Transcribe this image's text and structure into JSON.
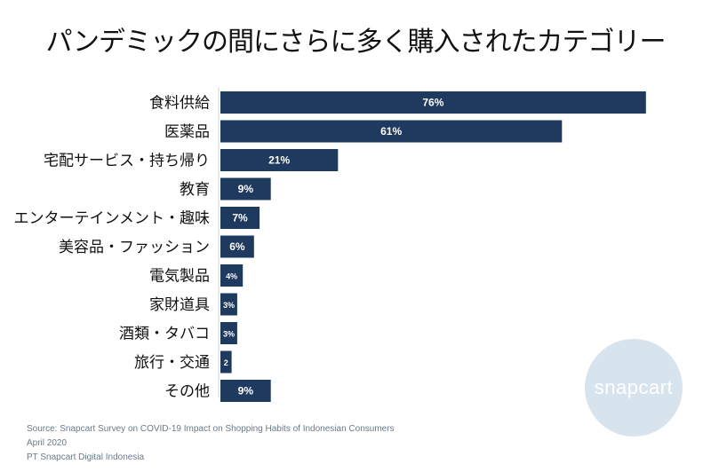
{
  "title": "パンデミックの間にさらに多く購入されたカテゴリー",
  "chart_data": {
    "type": "bar",
    "orientation": "horizontal",
    "categories": [
      "食料供給",
      "医薬品",
      "宅配サービス・持ち帰り",
      "教育",
      "エンターテインメント・趣味",
      "美容品・ファッション",
      "電気製品",
      "家財道具",
      "酒類・タバコ",
      "旅行・交通",
      "その他"
    ],
    "values": [
      76,
      61,
      21,
      9,
      7,
      6,
      4,
      3,
      3,
      2,
      9
    ],
    "value_labels": [
      "76%",
      "61%",
      "21%",
      "9%",
      "7%",
      "6%",
      "4%",
      "3%",
      "3%",
      "2",
      "9%"
    ],
    "xlim": [
      0,
      100
    ],
    "bar_color": "#1e3a5f",
    "label_color": "#ffffff",
    "grid": false,
    "legend": "none"
  },
  "logo_text": "snapcart",
  "source": {
    "line1": "Source: Snapcart Survey on COVID-19 Impact on Shopping Habits of Indonesian Consumers",
    "line2": "April 2020",
    "line3": "PT Snapcart Digital Indonesia"
  }
}
